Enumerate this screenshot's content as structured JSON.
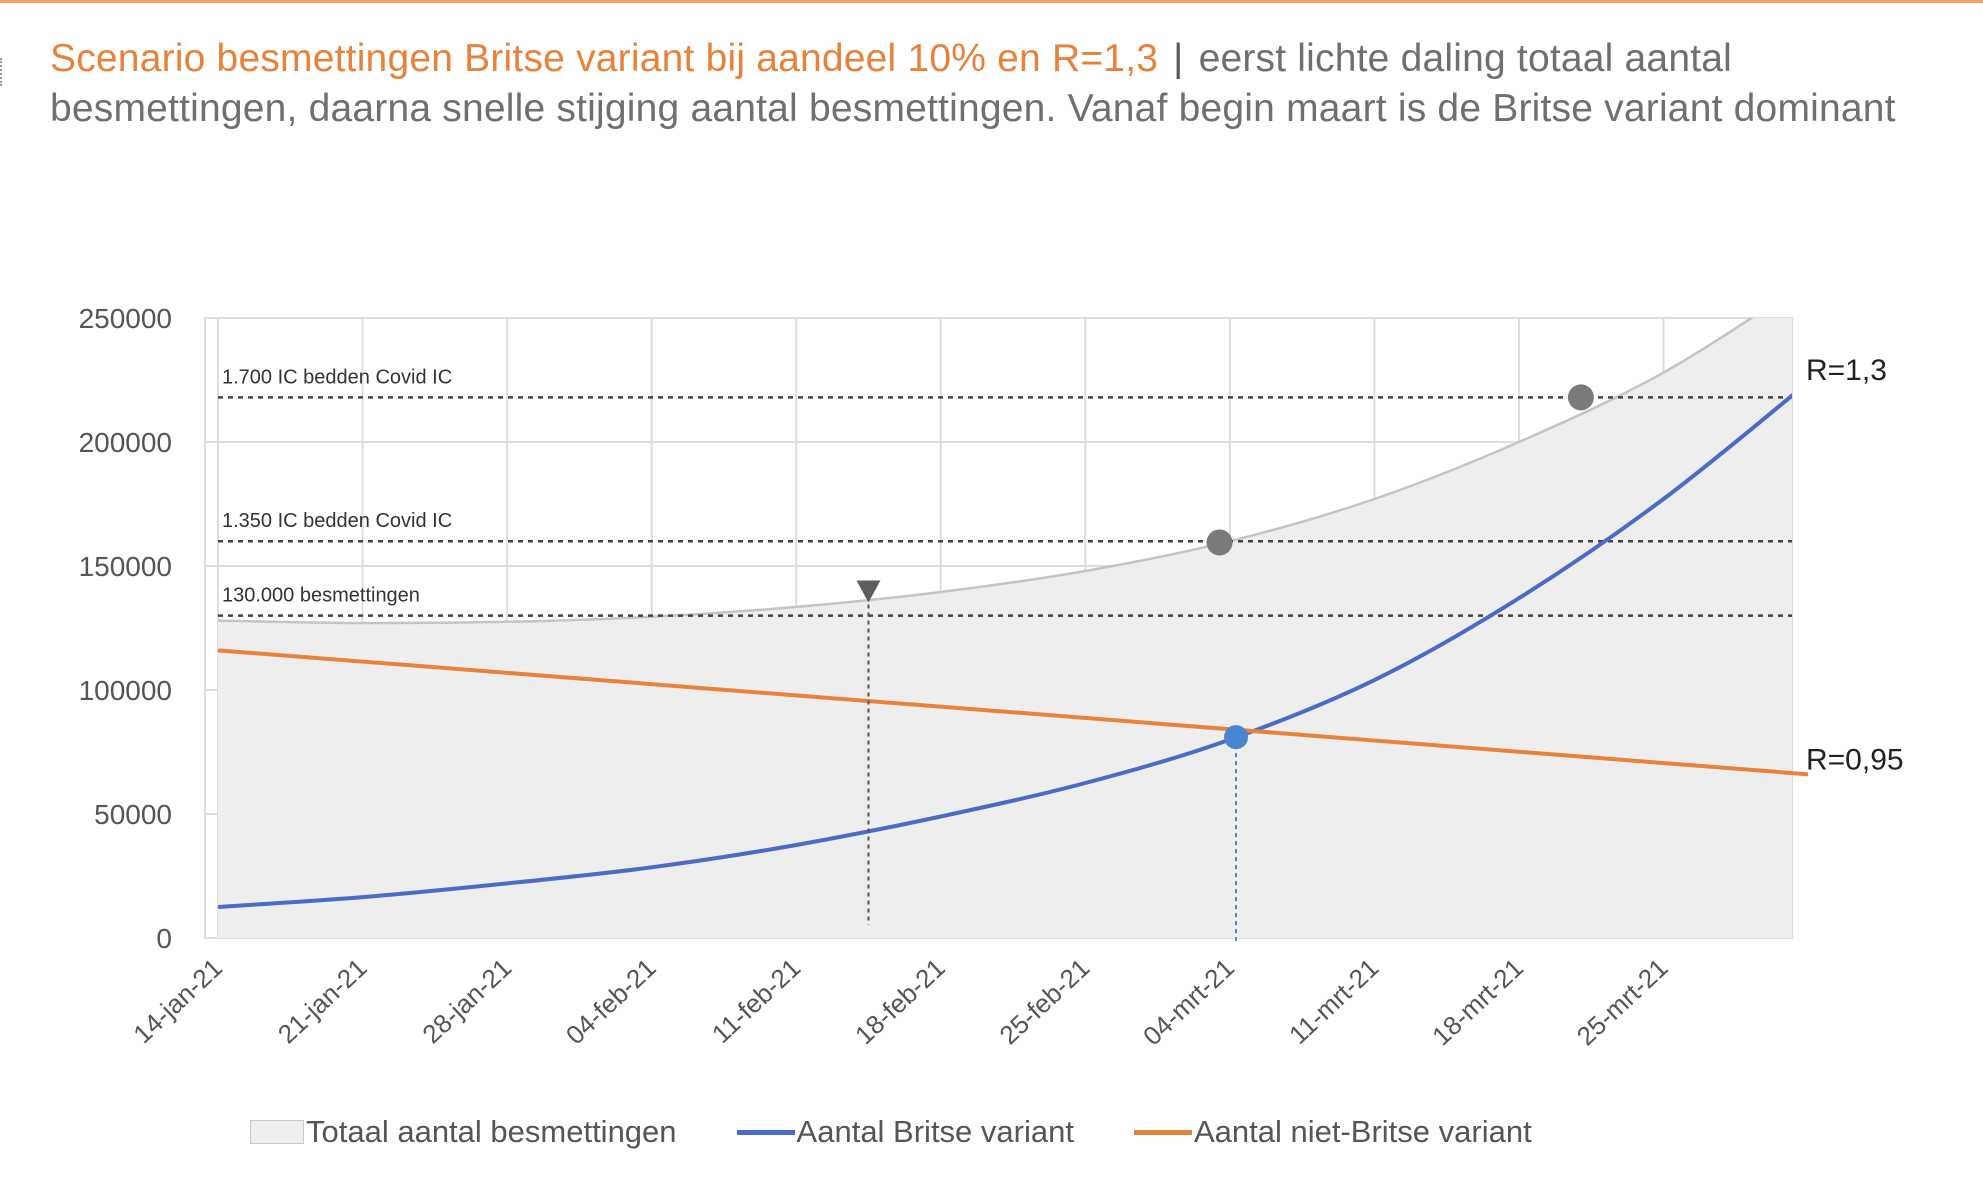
{
  "heading": {
    "accent": "Scenario besmettingen Britse variant bij aandeel 10% en R=1,3",
    "separator": "|",
    "rest": "eerst lichte daling totaal aantal besmettingen, daarna snelle stijging aantal besmettingen. Vanaf begin maart is de Britse variant dominant"
  },
  "colors": {
    "total_fill": "#eeeeee",
    "total_line": "#c4c4c4",
    "british": "#4a6bc8",
    "non_british": "#e8823a",
    "marker_gray": "#7a7a7a",
    "marker_blue": "#4a86d0",
    "accent_text": "#e8823a"
  },
  "chart_data": {
    "type": "line",
    "ylim": [
      0,
      250000
    ],
    "yticks": [
      0,
      50000,
      100000,
      150000,
      200000,
      250000
    ],
    "x_tick_labels": [
      "14-jan-21",
      "21-jan-21",
      "28-jan-21",
      "04-feb-21",
      "11-feb-21",
      "18-feb-21",
      "25-feb-21",
      "04-mrt-21",
      "11-mrt-21",
      "18-mrt-21",
      "25-mrt-21"
    ],
    "x_range_days": [
      0,
      77
    ],
    "grid": true,
    "legend_position": "bottom",
    "series": [
      {
        "name": "Totaal aantal besmettingen",
        "style": "area",
        "days": [
          0,
          7,
          14,
          21,
          28,
          35,
          42,
          49,
          56,
          63,
          70,
          77
        ],
        "values": [
          128000,
          127000,
          127500,
          129500,
          133500,
          139500,
          148000,
          160000,
          177000,
          200000,
          228000,
          265000
        ]
      },
      {
        "name": "Aantal Britse variant",
        "style": "line",
        "days": [
          0,
          7,
          14,
          21,
          28,
          35,
          42,
          49,
          56,
          63,
          70,
          77
        ],
        "values": [
          12500,
          16500,
          22000,
          28500,
          37500,
          49000,
          62500,
          80000,
          104000,
          137000,
          177000,
          224000
        ]
      },
      {
        "name": "Aantal niet-Britse variant",
        "style": "line",
        "days": [
          0,
          77
        ],
        "values": [
          116000,
          66000
        ]
      }
    ],
    "thresholds": [
      {
        "label": "1.700 IC bedden Covid IC",
        "value": 218000
      },
      {
        "label": "1.350 IC bedden Covid IC",
        "value": 160000
      },
      {
        "label": "130.000 besmettingen",
        "value": 130000
      }
    ],
    "markers": [
      {
        "kind": "triangle",
        "day": 31.5,
        "value": 134500
      },
      {
        "kind": "circle-gray",
        "day": 48.5,
        "value": 159500
      },
      {
        "kind": "circle-gray",
        "day": 66,
        "value": 218000
      },
      {
        "kind": "circle-blue",
        "day": 49.3,
        "value": 81000
      }
    ],
    "end_labels": [
      {
        "text": "R=1,3",
        "value": 229000
      },
      {
        "text": "R=0,95",
        "value": 72000
      }
    ]
  }
}
